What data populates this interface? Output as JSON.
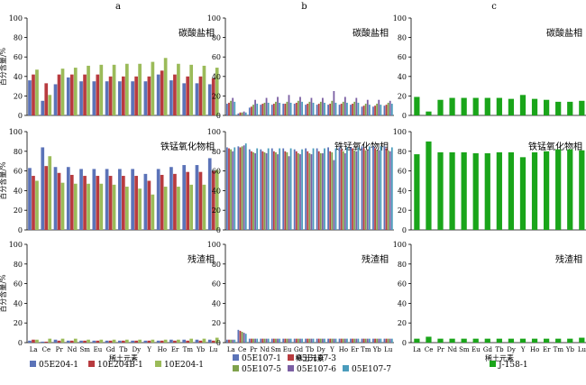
{
  "chart_data": [
    {
      "type": "bar",
      "column": "a",
      "panel": "碳酸盐相",
      "ylim": [
        0,
        100
      ],
      "series": [
        {
          "name": "05E204-1",
          "values": [
            36,
            15,
            32,
            39,
            35,
            35,
            35,
            35,
            35,
            35,
            42,
            36,
            33,
            33,
            32
          ]
        },
        {
          "name": "10E204B-1",
          "values": [
            42,
            33,
            42,
            42,
            42,
            42,
            40,
            40,
            40,
            40,
            46,
            42,
            40,
            40,
            38
          ]
        },
        {
          "name": "10E204-1",
          "values": [
            47,
            21,
            48,
            49,
            51,
            52,
            52,
            53,
            53,
            55,
            59,
            53,
            52,
            51,
            49
          ]
        }
      ]
    },
    {
      "type": "bar",
      "column": "a",
      "panel": "铁锰氧化物相",
      "ylim": [
        0,
        100
      ],
      "series": [
        {
          "name": "05E204-1",
          "values": [
            63,
            84,
            64,
            64,
            62,
            62,
            62,
            62,
            62,
            57,
            62,
            64,
            66,
            66,
            73
          ]
        },
        {
          "name": "10E204B-1",
          "values": [
            55,
            65,
            58,
            56,
            55,
            55,
            55,
            55,
            55,
            50,
            56,
            57,
            59,
            59,
            60
          ]
        },
        {
          "name": "10E204-1",
          "values": [
            50,
            75,
            48,
            47,
            47,
            47,
            46,
            44,
            42,
            36,
            44,
            44,
            46,
            46,
            61
          ]
        }
      ]
    },
    {
      "type": "bar",
      "column": "a",
      "panel": "残渣相",
      "ylim": [
        0,
        100
      ],
      "series": [
        {
          "name": "05E204-1",
          "values": [
            2,
            1,
            3,
            2,
            2,
            2,
            2,
            2,
            2,
            2,
            2,
            3,
            3,
            3,
            3
          ]
        },
        {
          "name": "10E204B-1",
          "values": [
            3,
            1,
            2,
            2,
            2,
            2,
            2,
            2,
            2,
            2,
            2,
            2,
            2,
            2,
            2
          ]
        },
        {
          "name": "10E204-1",
          "values": [
            3,
            4,
            4,
            4,
            3,
            3,
            3,
            3,
            3,
            3,
            3,
            3,
            4,
            4,
            5
          ]
        }
      ]
    },
    {
      "type": "bar",
      "column": "b",
      "panel": "碳酸盐相",
      "ylim": [
        0,
        100
      ],
      "series": [
        {
          "name": "05E107-1",
          "values": [
            12,
            2,
            8,
            11,
            11,
            12,
            12,
            11,
            11,
            11,
            11,
            11,
            9,
            9,
            10
          ]
        },
        {
          "name": "05E107-3",
          "values": [
            13,
            3,
            9,
            12,
            12,
            12,
            13,
            12,
            12,
            12,
            12,
            12,
            10,
            10,
            11
          ]
        },
        {
          "name": "05E107-5",
          "values": [
            15,
            3,
            11,
            13,
            14,
            14,
            15,
            14,
            14,
            15,
            14,
            14,
            12,
            12,
            13
          ]
        },
        {
          "name": "05E107-6",
          "values": [
            18,
            4,
            16,
            18,
            19,
            21,
            19,
            18,
            18,
            25,
            19,
            18,
            16,
            16,
            15
          ]
        },
        {
          "name": "05E107-7",
          "values": [
            14,
            3,
            12,
            13,
            13,
            13,
            14,
            13,
            13,
            13,
            13,
            13,
            11,
            11,
            12
          ]
        }
      ]
    },
    {
      "type": "bar",
      "column": "b",
      "panel": "铁锰氧化物相",
      "ylim": [
        0,
        100
      ],
      "series": [
        {
          "name": "05E107-1",
          "values": [
            84,
            85,
            82,
            82,
            83,
            83,
            82,
            83,
            83,
            84,
            84,
            84,
            85,
            85,
            85
          ]
        },
        {
          "name": "05E107-3",
          "values": [
            83,
            84,
            80,
            80,
            80,
            80,
            80,
            80,
            80,
            80,
            82,
            83,
            83,
            83,
            83
          ]
        },
        {
          "name": "05E107-5",
          "values": [
            82,
            85,
            79,
            79,
            79,
            79,
            78,
            78,
            78,
            79,
            80,
            81,
            81,
            81,
            81
          ]
        },
        {
          "name": "05E107-6",
          "values": [
            80,
            86,
            78,
            78,
            77,
            75,
            77,
            77,
            78,
            71,
            78,
            80,
            81,
            81,
            80
          ]
        },
        {
          "name": "05E107-7",
          "values": [
            84,
            88,
            83,
            83,
            83,
            83,
            82,
            83,
            83,
            83,
            84,
            84,
            85,
            85,
            84
          ]
        }
      ]
    },
    {
      "type": "bar",
      "column": "b",
      "panel": "残渣相",
      "ylim": [
        0,
        100
      ],
      "series": [
        {
          "name": "05E107-1",
          "values": [
            3,
            13,
            4,
            4,
            4,
            4,
            4,
            4,
            4,
            4,
            4,
            4,
            4,
            4,
            4
          ]
        },
        {
          "name": "05E107-3",
          "values": [
            3,
            12,
            4,
            4,
            4,
            4,
            4,
            4,
            4,
            4,
            4,
            4,
            4,
            4,
            4
          ]
        },
        {
          "name": "05E107-5",
          "values": [
            3,
            11,
            4,
            4,
            4,
            4,
            4,
            4,
            4,
            4,
            4,
            4,
            4,
            4,
            4
          ]
        },
        {
          "name": "05E107-6",
          "values": [
            3,
            10,
            4,
            4,
            4,
            4,
            4,
            4,
            4,
            4,
            4,
            4,
            4,
            4,
            4
          ]
        },
        {
          "name": "05E107-7",
          "values": [
            3,
            9,
            4,
            4,
            4,
            4,
            4,
            4,
            4,
            4,
            4,
            4,
            4,
            4,
            4
          ]
        }
      ]
    },
    {
      "type": "bar",
      "column": "c",
      "panel": "碳酸盐相",
      "ylim": [
        0,
        100
      ],
      "series": [
        {
          "name": "J-158-1",
          "values": [
            19,
            4,
            16,
            18,
            18,
            18,
            18,
            18,
            17,
            21,
            17,
            16,
            14,
            14,
            15
          ]
        }
      ]
    },
    {
      "type": "bar",
      "column": "c",
      "panel": "铁锰氧化物相",
      "ylim": [
        0,
        100
      ],
      "series": [
        {
          "name": "J-158-1",
          "values": [
            77,
            90,
            79,
            79,
            79,
            78,
            78,
            79,
            79,
            74,
            79,
            80,
            82,
            82,
            81
          ]
        }
      ]
    },
    {
      "type": "bar",
      "column": "c",
      "panel": "残渣相",
      "ylim": [
        0,
        100
      ],
      "series": [
        {
          "name": "J-158-1",
          "values": [
            4,
            6,
            4,
            4,
            4,
            4,
            4,
            4,
            4,
            4,
            4,
            4,
            4,
            4,
            5
          ]
        }
      ]
    }
  ],
  "categories": [
    "La",
    "Ce",
    "Pr",
    "Nd",
    "Sm",
    "Eu",
    "Gd",
    "Tb",
    "Dy",
    "Y",
    "Ho",
    "Er",
    "Tm",
    "Yb",
    "Lu"
  ],
  "yticks": [
    "0",
    "20",
    "40",
    "60",
    "80",
    "100"
  ],
  "column_labels": [
    "a",
    "b",
    "c"
  ],
  "ylabel": "百分含量/%",
  "xlabel": "稀土元素",
  "legend_a": [
    "05E204-1",
    "10E204B-1",
    "10E204-1"
  ],
  "legend_b": [
    "05E107-1",
    "05E107-3",
    "05E107-5",
    "05E107-6",
    "05E107-7"
  ],
  "legend_c": [
    "J-158-1"
  ],
  "colors": {
    "05E204-1": "#5b73b8",
    "10E204B-1": "#b83b3f",
    "10E204-1": "#9bbb59",
    "05E107-1": "#5b73b8",
    "05E107-3": "#b83b3f",
    "05E107-5": "#7fa24b",
    "05E107-6": "#7b5fa3",
    "05E107-7": "#4a9cbc",
    "J-158-1": "#1aa51a"
  }
}
